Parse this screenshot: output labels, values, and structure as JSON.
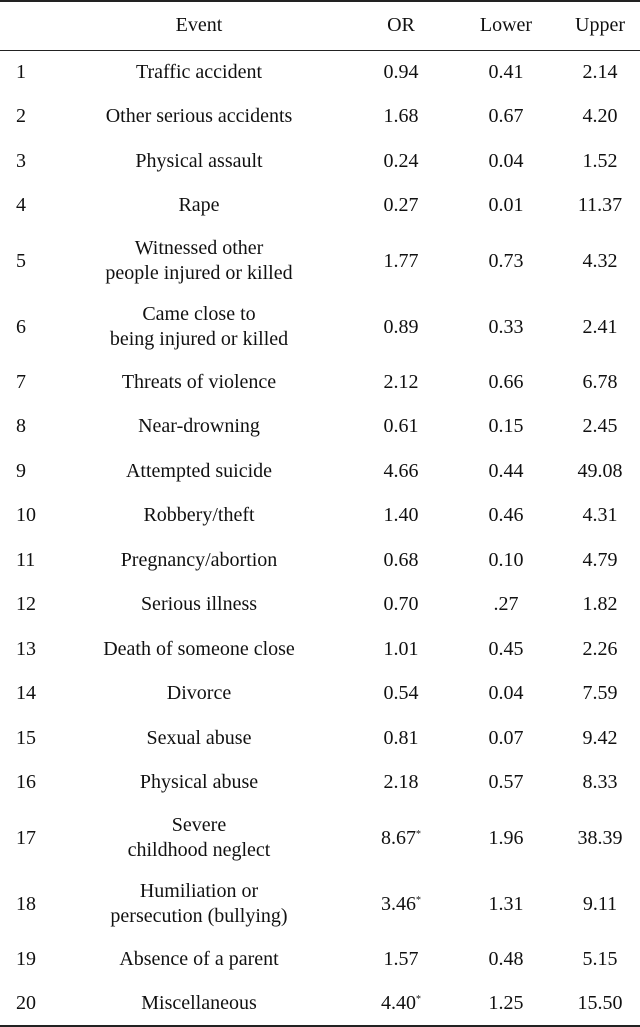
{
  "table": {
    "headers": {
      "number": "",
      "event": "Event",
      "or": "OR",
      "lower": "Lower",
      "upper": "Upper"
    },
    "rows": [
      {
        "n": "1",
        "event": [
          "Traffic accident"
        ],
        "or": "0.94",
        "mark": "",
        "lower": "0.41",
        "upper": "2.14"
      },
      {
        "n": "2",
        "event": [
          "Other serious accidents"
        ],
        "or": "1.68",
        "mark": "",
        "lower": "0.67",
        "upper": "4.20"
      },
      {
        "n": "3",
        "event": [
          "Physical assault"
        ],
        "or": "0.24",
        "mark": "",
        "lower": "0.04",
        "upper": "1.52"
      },
      {
        "n": "4",
        "event": [
          "Rape"
        ],
        "or": "0.27",
        "mark": "",
        "lower": "0.01",
        "upper": "11.37"
      },
      {
        "n": "5",
        "event": [
          "Witnessed other",
          "people injured or killed"
        ],
        "or": "1.77",
        "mark": "",
        "lower": "0.73",
        "upper": "4.32"
      },
      {
        "n": "6",
        "event": [
          "Came close to",
          "being injured or killed"
        ],
        "or": "0.89",
        "mark": "",
        "lower": "0.33",
        "upper": "2.41"
      },
      {
        "n": "7",
        "event": [
          "Threats of violence"
        ],
        "or": "2.12",
        "mark": "",
        "lower": "0.66",
        "upper": "6.78"
      },
      {
        "n": "8",
        "event": [
          "Near-drowning"
        ],
        "or": "0.61",
        "mark": "",
        "lower": "0.15",
        "upper": "2.45"
      },
      {
        "n": "9",
        "event": [
          "Attempted suicide"
        ],
        "or": "4.66",
        "mark": "",
        "lower": "0.44",
        "upper": "49.08"
      },
      {
        "n": "10",
        "event": [
          "Robbery/theft"
        ],
        "or": "1.40",
        "mark": "",
        "lower": "0.46",
        "upper": "4.31"
      },
      {
        "n": "11",
        "event": [
          "Pregnancy/abortion"
        ],
        "or": "0.68",
        "mark": "",
        "lower": "0.10",
        "upper": "4.79"
      },
      {
        "n": "12",
        "event": [
          "Serious illness"
        ],
        "or": "0.70",
        "mark": "",
        "lower": ".27",
        "upper": "1.82"
      },
      {
        "n": "13",
        "event": [
          "Death of someone close"
        ],
        "or": "1.01",
        "mark": "",
        "lower": "0.45",
        "upper": "2.26"
      },
      {
        "n": "14",
        "event": [
          "Divorce"
        ],
        "or": "0.54",
        "mark": "",
        "lower": "0.04",
        "upper": "7.59"
      },
      {
        "n": "15",
        "event": [
          "Sexual abuse"
        ],
        "or": "0.81",
        "mark": "",
        "lower": "0.07",
        "upper": "9.42"
      },
      {
        "n": "16",
        "event": [
          "Physical abuse"
        ],
        "or": "2.18",
        "mark": "",
        "lower": "0.57",
        "upper": "8.33"
      },
      {
        "n": "17",
        "event": [
          "Severe",
          "childhood neglect"
        ],
        "or": "8.67",
        "mark": "*",
        "lower": "1.96",
        "upper": "38.39"
      },
      {
        "n": "18",
        "event": [
          "Humiliation or",
          "persecution (bullying)"
        ],
        "or": "3.46",
        "mark": "*",
        "lower": "1.31",
        "upper": "9.11"
      },
      {
        "n": "19",
        "event": [
          "Absence of a parent"
        ],
        "or": "1.57",
        "mark": "",
        "lower": "0.48",
        "upper": "5.15"
      },
      {
        "n": "20",
        "event": [
          "Miscellaneous"
        ],
        "or": "4.40",
        "mark": "*",
        "lower": "1.25",
        "upper": "15.50"
      }
    ]
  }
}
